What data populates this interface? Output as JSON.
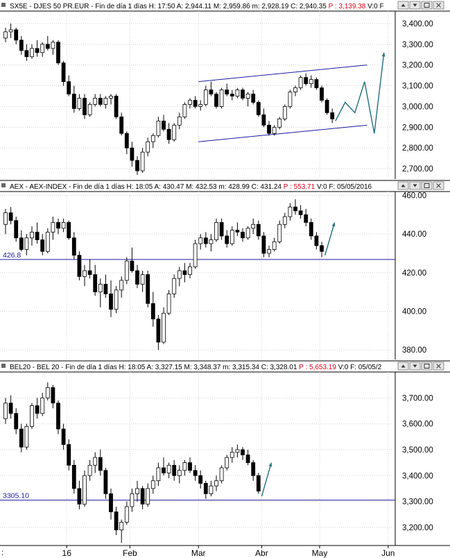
{
  "chart_data": [
    {
      "type": "candlestick",
      "header": {
        "symbol": "SX5E",
        "name": "DJES 50 PR.EUR",
        "period": "Fin de día 1 días",
        "time": "H: 17:50",
        "high": "A: 2,944.11",
        "max": "M: 2,959.86",
        "min": "m: 2,928.19",
        "close": "C: 2,940.35",
        "p": "P : 3,139.38",
        "v": "V:0",
        "f": "F"
      },
      "y_ticks": [
        "3,400.00",
        "3,300.00",
        "3,200.00",
        "3,100.00",
        "3,000.00",
        "2,900.00",
        "2,800.00",
        "2,700.00"
      ],
      "ylim": [
        2650,
        3460
      ],
      "candles": [
        [
          3330,
          3380,
          3310,
          3360
        ],
        [
          3360,
          3400,
          3330,
          3370
        ],
        [
          3370,
          3380,
          3300,
          3320
        ],
        [
          3320,
          3340,
          3250,
          3270
        ],
        [
          3270,
          3300,
          3220,
          3240
        ],
        [
          3240,
          3300,
          3230,
          3280
        ],
        [
          3280,
          3320,
          3240,
          3260
        ],
        [
          3260,
          3310,
          3240,
          3300
        ],
        [
          3300,
          3340,
          3270,
          3280
        ],
        [
          3280,
          3320,
          3250,
          3310
        ],
        [
          3310,
          3320,
          3200,
          3210
        ],
        [
          3210,
          3220,
          3100,
          3120
        ],
        [
          3120,
          3150,
          3050,
          3060
        ],
        [
          3060,
          3100,
          2970,
          2990
        ],
        [
          2990,
          3060,
          2980,
          3040
        ],
        [
          3040,
          3060,
          2940,
          2960
        ],
        [
          2960,
          3020,
          2950,
          3010
        ],
        [
          3010,
          3060,
          3000,
          3040
        ],
        [
          3040,
          3060,
          3000,
          3010
        ],
        [
          3010,
          3050,
          2990,
          3040
        ],
        [
          3040,
          3060,
          3010,
          3050
        ],
        [
          3050,
          3060,
          2940,
          2950
        ],
        [
          2950,
          2970,
          2860,
          2870
        ],
        [
          2870,
          2880,
          2770,
          2800
        ],
        [
          2800,
          2830,
          2710,
          2740
        ],
        [
          2740,
          2760,
          2670,
          2690
        ],
        [
          2690,
          2800,
          2680,
          2780
        ],
        [
          2780,
          2850,
          2760,
          2830
        ],
        [
          2830,
          2870,
          2800,
          2860
        ],
        [
          2860,
          2950,
          2850,
          2930
        ],
        [
          2930,
          2960,
          2880,
          2890
        ],
        [
          2890,
          2920,
          2820,
          2840
        ],
        [
          2840,
          2920,
          2830,
          2910
        ],
        [
          2910,
          2970,
          2890,
          2950
        ],
        [
          2950,
          3020,
          2940,
          3010
        ],
        [
          3010,
          3040,
          2990,
          3030
        ],
        [
          3030,
          3050,
          2990,
          3000
        ],
        [
          3000,
          3030,
          2980,
          3010
        ],
        [
          3010,
          3100,
          3000,
          3080
        ],
        [
          3080,
          3120,
          3050,
          3060
        ],
        [
          3060,
          3070,
          2990,
          3000
        ],
        [
          3000,
          3090,
          2990,
          3080
        ],
        [
          3080,
          3110,
          3050,
          3060
        ],
        [
          3060,
          3080,
          3030,
          3050
        ],
        [
          3050,
          3090,
          3040,
          3080
        ],
        [
          3080,
          3090,
          3030,
          3040
        ],
        [
          3040,
          3070,
          3000,
          3060
        ],
        [
          3060,
          3080,
          3010,
          3020
        ],
        [
          3020,
          3030,
          2950,
          2960
        ],
        [
          2960,
          2990,
          2900,
          2910
        ],
        [
          2910,
          2930,
          2860,
          2870
        ],
        [
          2870,
          2910,
          2860,
          2900
        ],
        [
          2900,
          2950,
          2890,
          2940
        ],
        [
          2940,
          3010,
          2930,
          3000
        ],
        [
          3000,
          3080,
          2990,
          3070
        ],
        [
          3070,
          3100,
          3050,
          3090
        ],
        [
          3090,
          3150,
          3080,
          3140
        ],
        [
          3140,
          3160,
          3100,
          3110
        ],
        [
          3110,
          3150,
          3090,
          3130
        ],
        [
          3130,
          3140,
          3080,
          3090
        ],
        [
          3090,
          3100,
          3020,
          3030
        ],
        [
          3030,
          3040,
          2960,
          2970
        ],
        [
          2970,
          2990,
          2920,
          2940
        ]
      ],
      "channel": {
        "upper": [
          3120,
          3200
        ],
        "lower": [
          2830,
          2910
        ]
      },
      "projection": [
        2930,
        3020,
        2970,
        3120,
        2870,
        3260
      ]
    },
    {
      "type": "candlestick",
      "header": {
        "symbol": "AEX",
        "name": "AEX-INDEX",
        "period": "Fin de día 1 días",
        "time": "H: 18:05",
        "high": "A: 430.47",
        "max": "M: 432.53",
        "min": "m: 428.99",
        "close": "C: 431.24",
        "p": "P : 553.71",
        "v": "V:0",
        "f": "F: 05/05/2016"
      },
      "y_ticks": [
        "460.00",
        "440.00",
        "420.00",
        "400.00",
        "380.00"
      ],
      "ylim": [
        375,
        462
      ],
      "reference": {
        "value": 426.8,
        "label": "426.8"
      },
      "candles": [
        [
          445,
          453,
          440,
          451
        ],
        [
          451,
          454,
          445,
          447
        ],
        [
          447,
          449,
          436,
          438
        ],
        [
          438,
          442,
          431,
          432
        ],
        [
          432,
          440,
          429,
          438
        ],
        [
          438,
          444,
          434,
          441
        ],
        [
          441,
          446,
          435,
          437
        ],
        [
          437,
          440,
          429,
          431
        ],
        [
          431,
          443,
          430,
          441
        ],
        [
          441,
          449,
          437,
          446
        ],
        [
          446,
          448,
          440,
          443
        ],
        [
          443,
          448,
          441,
          446
        ],
        [
          446,
          447,
          437,
          438
        ],
        [
          438,
          441,
          427,
          429
        ],
        [
          429,
          431,
          416,
          418
        ],
        [
          418,
          424,
          413,
          421
        ],
        [
          421,
          427,
          417,
          419
        ],
        [
          419,
          424,
          408,
          410
        ],
        [
          410,
          417,
          402,
          414
        ],
        [
          414,
          419,
          407,
          409
        ],
        [
          409,
          416,
          397,
          401
        ],
        [
          401,
          413,
          399,
          411
        ],
        [
          411,
          418,
          407,
          416
        ],
        [
          416,
          428,
          414,
          426
        ],
        [
          426,
          433,
          420,
          421
        ],
        [
          421,
          424,
          412,
          414
        ],
        [
          414,
          421,
          410,
          419
        ],
        [
          419,
          421,
          402,
          404
        ],
        [
          404,
          410,
          392,
          396
        ],
        [
          396,
          398,
          380,
          384
        ],
        [
          384,
          402,
          383,
          399
        ],
        [
          399,
          411,
          398,
          409
        ],
        [
          409,
          419,
          407,
          417
        ],
        [
          417,
          423,
          413,
          421
        ],
        [
          421,
          425,
          415,
          419
        ],
        [
          419,
          425,
          417,
          423
        ],
        [
          423,
          437,
          422,
          435
        ],
        [
          435,
          440,
          432,
          438
        ],
        [
          438,
          441,
          433,
          435
        ],
        [
          435,
          440,
          431,
          437
        ],
        [
          437,
          448,
          436,
          446
        ],
        [
          446,
          448,
          437,
          439
        ],
        [
          439,
          442,
          433,
          435
        ],
        [
          435,
          444,
          434,
          442
        ],
        [
          442,
          446,
          439,
          441
        ],
        [
          441,
          443,
          436,
          438
        ],
        [
          438,
          444,
          437,
          443
        ],
        [
          443,
          448,
          440,
          445
        ],
        [
          445,
          447,
          437,
          439
        ],
        [
          439,
          441,
          428,
          430
        ],
        [
          430,
          434,
          428,
          432
        ],
        [
          432,
          438,
          431,
          436
        ],
        [
          436,
          447,
          435,
          445
        ],
        [
          445,
          451,
          443,
          449
        ],
        [
          449,
          456,
          447,
          454
        ],
        [
          454,
          458,
          450,
          452
        ],
        [
          452,
          455,
          448,
          450
        ],
        [
          450,
          453,
          444,
          446
        ],
        [
          446,
          448,
          437,
          439
        ],
        [
          439,
          441,
          432,
          434
        ],
        [
          434,
          436,
          428,
          431
        ]
      ],
      "projection": [
        429,
        446
      ]
    },
    {
      "type": "candlestick",
      "header": {
        "symbol": "BEL20",
        "name": "BEL 20",
        "period": "Fin de día 1 días",
        "time": "H: 18:05",
        "high": "A: 3,327.15",
        "max": "M: 3,348.37",
        "min": "m: 3,315.34",
        "close": "C: 3,328.01",
        "p": "P : 5,653.19",
        "v": "V:0",
        "f": "F: 05/05/2"
      },
      "y_ticks": [
        "3,700.00",
        "3,600.00",
        "3,500.00",
        "3,400.00",
        "3,300.00",
        "3,200.00"
      ],
      "ylim": [
        3130,
        3800
      ],
      "reference": {
        "value": 3305.1,
        "label": "3305.10"
      },
      "candles": [
        [
          3620,
          3700,
          3600,
          3680
        ],
        [
          3680,
          3710,
          3620,
          3640
        ],
        [
          3640,
          3660,
          3560,
          3580
        ],
        [
          3580,
          3600,
          3490,
          3510
        ],
        [
          3510,
          3600,
          3500,
          3590
        ],
        [
          3590,
          3680,
          3580,
          3670
        ],
        [
          3670,
          3700,
          3620,
          3640
        ],
        [
          3640,
          3720,
          3630,
          3700
        ],
        [
          3700,
          3760,
          3690,
          3740
        ],
        [
          3740,
          3750,
          3660,
          3680
        ],
        [
          3680,
          3690,
          3560,
          3580
        ],
        [
          3580,
          3600,
          3500,
          3520
        ],
        [
          3520,
          3540,
          3420,
          3440
        ],
        [
          3440,
          3460,
          3330,
          3350
        ],
        [
          3350,
          3380,
          3270,
          3290
        ],
        [
          3290,
          3420,
          3280,
          3400
        ],
        [
          3400,
          3460,
          3380,
          3440
        ],
        [
          3440,
          3490,
          3410,
          3470
        ],
        [
          3470,
          3500,
          3400,
          3420
        ],
        [
          3420,
          3430,
          3310,
          3330
        ],
        [
          3330,
          3350,
          3230,
          3260
        ],
        [
          3260,
          3280,
          3170,
          3190
        ],
        [
          3190,
          3230,
          3140,
          3220
        ],
        [
          3220,
          3300,
          3210,
          3280
        ],
        [
          3280,
          3350,
          3260,
          3330
        ],
        [
          3330,
          3380,
          3300,
          3350
        ],
        [
          3350,
          3360,
          3270,
          3290
        ],
        [
          3290,
          3370,
          3280,
          3350
        ],
        [
          3350,
          3400,
          3330,
          3380
        ],
        [
          3380,
          3450,
          3360,
          3430
        ],
        [
          3430,
          3470,
          3400,
          3410
        ],
        [
          3410,
          3450,
          3390,
          3440
        ],
        [
          3440,
          3460,
          3380,
          3400
        ],
        [
          3400,
          3440,
          3370,
          3420
        ],
        [
          3420,
          3460,
          3400,
          3450
        ],
        [
          3450,
          3470,
          3410,
          3420
        ],
        [
          3420,
          3440,
          3380,
          3400
        ],
        [
          3400,
          3420,
          3350,
          3370
        ],
        [
          3370,
          3380,
          3310,
          3330
        ],
        [
          3330,
          3380,
          3320,
          3360
        ],
        [
          3360,
          3400,
          3340,
          3380
        ],
        [
          3380,
          3440,
          3370,
          3430
        ],
        [
          3430,
          3480,
          3420,
          3470
        ],
        [
          3470,
          3510,
          3450,
          3490
        ],
        [
          3490,
          3520,
          3470,
          3500
        ],
        [
          3500,
          3510,
          3460,
          3480
        ],
        [
          3480,
          3500,
          3440,
          3450
        ],
        [
          3450,
          3460,
          3380,
          3400
        ],
        [
          3400,
          3410,
          3330,
          3340
        ]
      ],
      "projection": [
        3320,
        3450
      ]
    }
  ],
  "x_axis": {
    "labels": [
      "16",
      "Feb",
      "Mar",
      "Abr",
      "May",
      "Jun"
    ],
    "left_stub": ":"
  },
  "colors": {
    "candle": "#000000",
    "channel": "#1a1aa0",
    "projection": "#1f6f7a",
    "reference_line": "#1a1aa0",
    "price_red": "#e0001a"
  },
  "icons": [
    "scroll-up-icon",
    "scroll-down-icon",
    "maximize-icon",
    "close-icon"
  ]
}
